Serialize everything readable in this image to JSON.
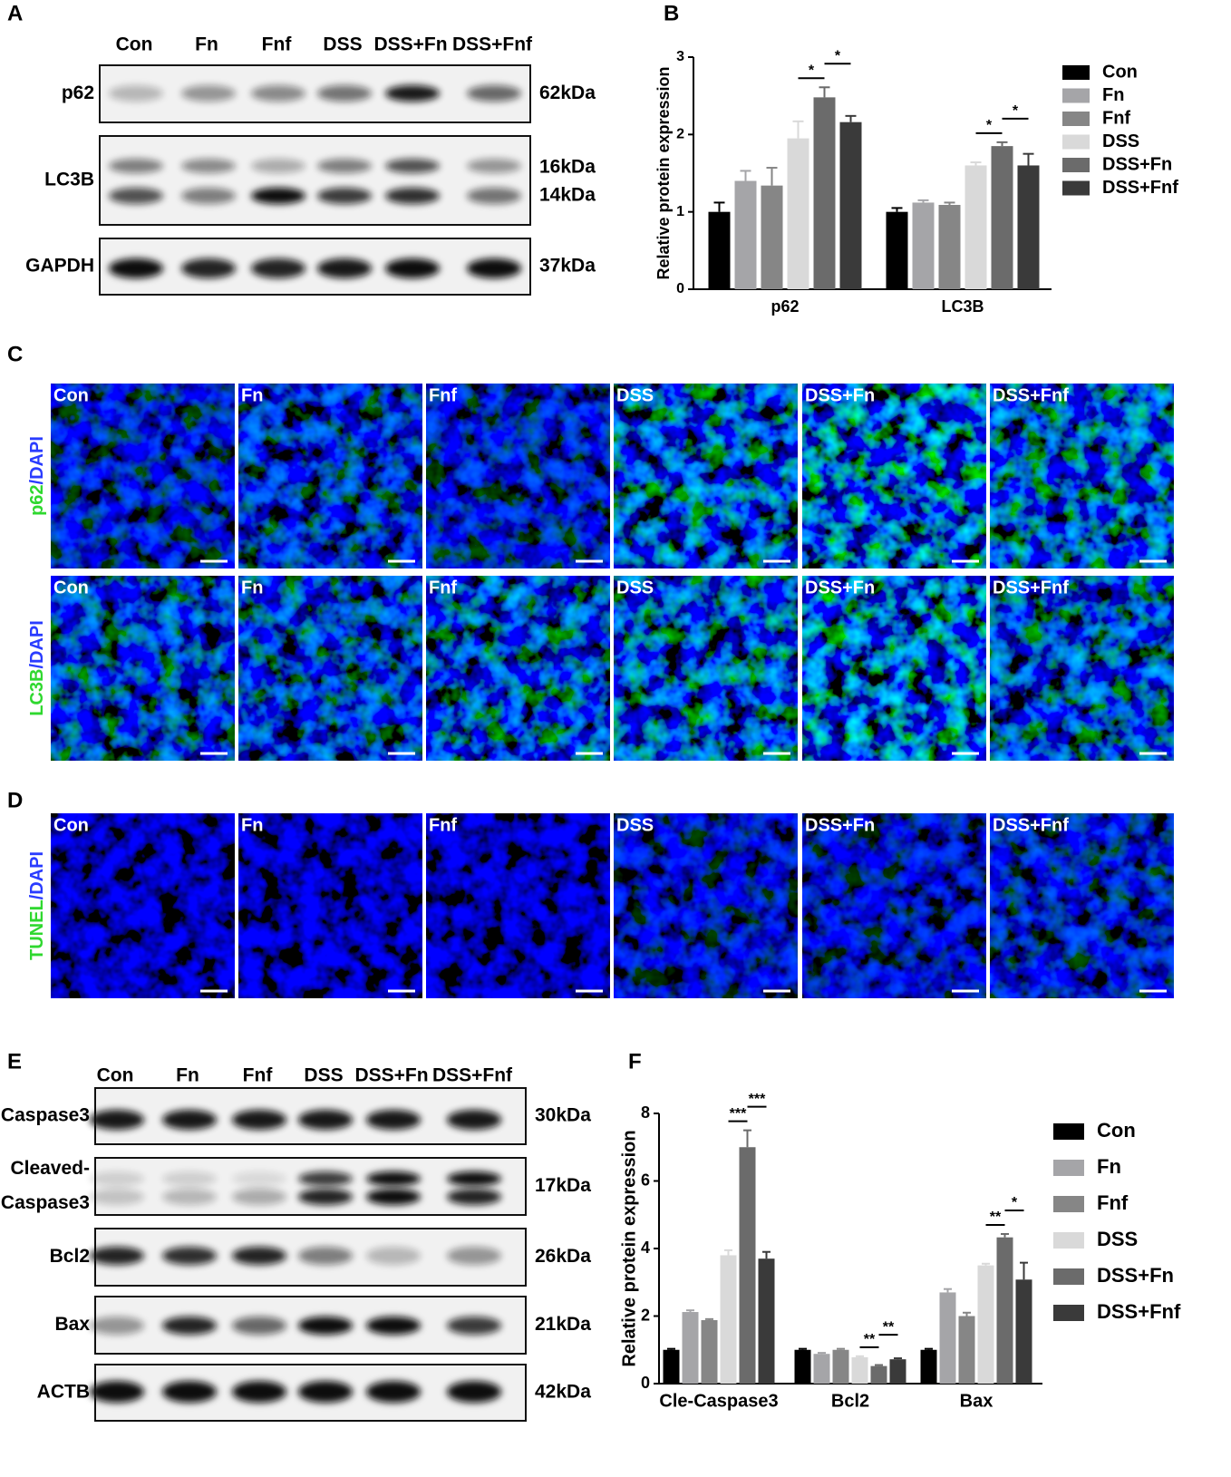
{
  "panel_letters": [
    "A",
    "B",
    "C",
    "D",
    "E",
    "F"
  ],
  "blot_a": {
    "lanes": [
      "Con",
      "Fn",
      "Fnf",
      "DSS",
      "DSS+Fn",
      "DSS+Fnf"
    ],
    "rows": [
      {
        "protein": [
          "p62"
        ],
        "sizes": [
          "62kDa"
        ]
      },
      {
        "protein": [
          "LC3B"
        ],
        "sizes": [
          "16kDa",
          "14kDa"
        ]
      },
      {
        "protein": [
          "GAPDH"
        ],
        "sizes": [
          "37kDa"
        ]
      }
    ]
  },
  "blot_e": {
    "lanes": [
      "Con",
      "Fn",
      "Fnf",
      "DSS",
      "DSS+Fn",
      "DSS+Fnf"
    ],
    "rows": [
      {
        "protein": [
          "Caspase3"
        ],
        "sizes": [
          "30kDa"
        ]
      },
      {
        "protein": [
          "Cleaved-",
          "Caspase3"
        ],
        "sizes": [
          "17kDa"
        ]
      },
      {
        "protein": [
          "Bcl2"
        ],
        "sizes": [
          "26kDa"
        ]
      },
      {
        "protein": [
          "Bax"
        ],
        "sizes": [
          "21kDa"
        ]
      },
      {
        "protein": [
          "ACTB"
        ],
        "sizes": [
          "42kDa"
        ]
      }
    ]
  },
  "if_c": {
    "rows": [
      {
        "stain": [
          "p62",
          "/DAPI"
        ],
        "images": [
          "Con",
          "Fn",
          "Fnf",
          "DSS",
          "DSS+Fn",
          "DSS+Fnf"
        ]
      },
      {
        "stain": [
          "LC3B",
          "/DAPI"
        ],
        "images": [
          "Con",
          "Fn",
          "Fnf",
          "DSS",
          "DSS+Fn",
          "DSS+Fnf"
        ]
      }
    ]
  },
  "if_d": {
    "rows": [
      {
        "stain": [
          "TUNEL",
          "/DAPI"
        ],
        "images": [
          "Con",
          "Fn",
          "Fnf",
          "DSS",
          "DSS+Fn",
          "DSS+Fnf"
        ]
      }
    ]
  },
  "chart_data": [
    {
      "type": "bar",
      "y_label": "Relative protein expression",
      "categories": [
        "p62",
        "LC3B"
      ],
      "series": [
        {
          "name": "Con",
          "color": "#000000",
          "values": [
            1.0,
            1.0
          ],
          "errors": [
            0.12,
            0.05
          ]
        },
        {
          "name": "Fn",
          "color": "#a5a5a8",
          "values": [
            1.4,
            1.12
          ],
          "errors": [
            0.13,
            0.03
          ]
        },
        {
          "name": "Fnf",
          "color": "#868686",
          "values": [
            1.34,
            1.09
          ],
          "errors": [
            0.23,
            0.03
          ]
        },
        {
          "name": "DSS",
          "color": "#d9d9d9",
          "values": [
            1.95,
            1.6
          ],
          "errors": [
            0.22,
            0.04
          ]
        },
        {
          "name": "DSS+Fn",
          "color": "#6b6b6b",
          "values": [
            2.48,
            1.85
          ],
          "errors": [
            0.13,
            0.05
          ]
        },
        {
          "name": "DSS+Fnf",
          "color": "#3a3a3a",
          "values": [
            2.16,
            1.6
          ],
          "errors": [
            0.08,
            0.15
          ]
        }
      ],
      "ylim": [
        0,
        3
      ],
      "yticks": [
        0,
        1,
        2,
        3
      ],
      "annotations": [
        {
          "text": "*"
        },
        {
          "text": "*"
        },
        {
          "text": "*"
        },
        {
          "text": "*"
        }
      ]
    },
    {
      "type": "bar",
      "y_label": "Relative protein expression",
      "categories": [
        "Cle-Caspase3",
        "Bcl2",
        "Bax"
      ],
      "series": [
        {
          "name": "Con",
          "color": "#000000",
          "values": [
            1.0,
            1.0,
            1.0
          ],
          "errors": [
            0.03,
            0.03,
            0.03
          ]
        },
        {
          "name": "Fn",
          "color": "#a5a5a8",
          "values": [
            2.12,
            0.88,
            2.7
          ],
          "errors": [
            0.05,
            0.03,
            0.1
          ]
        },
        {
          "name": "Fnf",
          "color": "#868686",
          "values": [
            1.88,
            1.0,
            2.0
          ],
          "errors": [
            0.03,
            0.03,
            0.1
          ]
        },
        {
          "name": "DSS",
          "color": "#d9d9d9",
          "values": [
            3.8,
            0.78,
            3.5
          ],
          "errors": [
            0.15,
            0.03,
            0.05
          ]
        },
        {
          "name": "DSS+Fn",
          "color": "#6b6b6b",
          "values": [
            7.0,
            0.52,
            4.33
          ],
          "errors": [
            0.5,
            0.03,
            0.1
          ]
        },
        {
          "name": "DSS+Fnf",
          "color": "#3a3a3a",
          "values": [
            3.7,
            0.72,
            3.08
          ],
          "errors": [
            0.2,
            0.03,
            0.5
          ]
        }
      ],
      "ylim": [
        0,
        8
      ],
      "yticks": [
        0,
        2,
        4,
        6,
        8
      ],
      "annotations": [
        {
          "text": "***"
        },
        {
          "text": "***"
        },
        {
          "text": "**"
        },
        {
          "text": "**"
        },
        {
          "text": "**"
        },
        {
          "text": "*"
        }
      ]
    }
  ]
}
